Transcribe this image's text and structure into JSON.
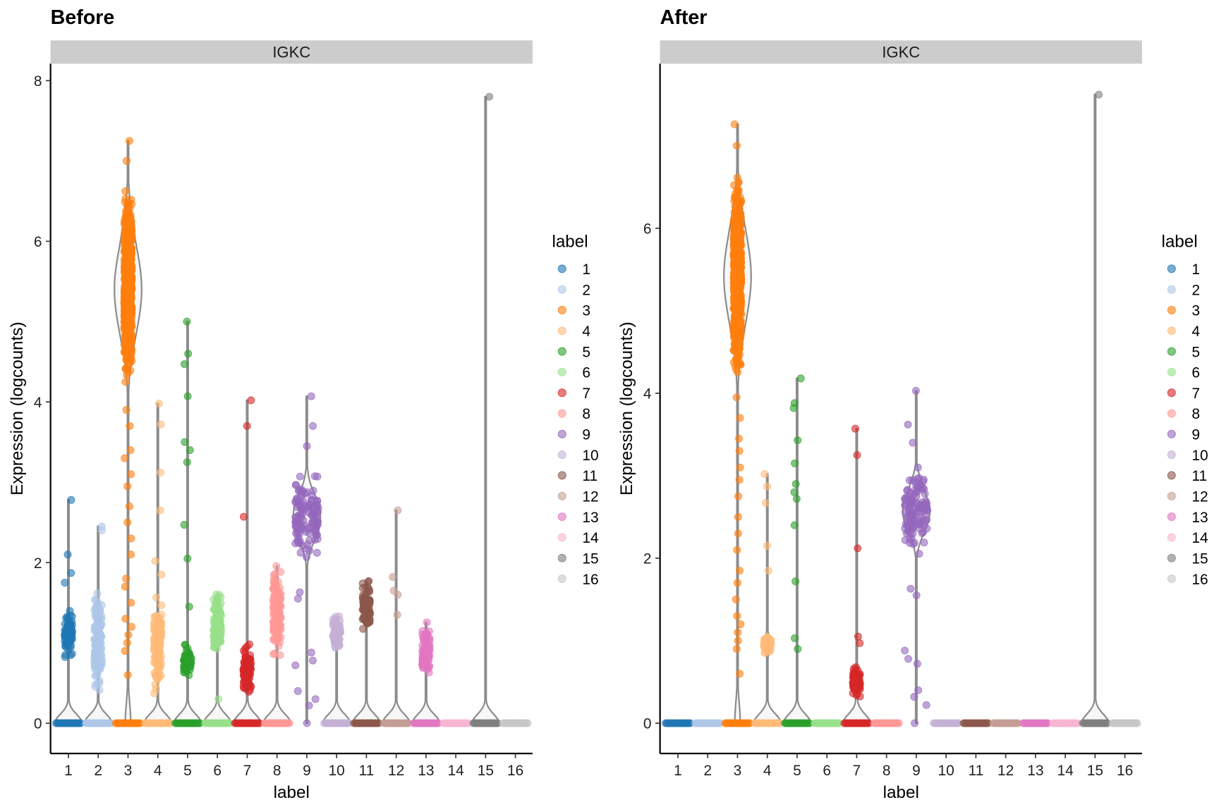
{
  "chart_data": [
    {
      "type": "violin",
      "title": "Before",
      "facet": "IGKC",
      "xlabel": "label",
      "ylabel": "Expression (logcounts)",
      "ylim": [
        -0.38,
        8.2
      ],
      "yticks": [
        0,
        2,
        4,
        6,
        8
      ],
      "categories": [
        "1",
        "2",
        "3",
        "4",
        "5",
        "6",
        "7",
        "8",
        "9",
        "10",
        "11",
        "12",
        "13",
        "14",
        "15",
        "16"
      ],
      "groups": [
        {
          "label": "1",
          "zeros": true,
          "dense": [
            0.7,
            1.5
          ],
          "points": [
            1.75,
            1.87,
            2.1,
            2.78
          ]
        },
        {
          "label": "2",
          "zeros": true,
          "dense": [
            0.2,
            1.8
          ],
          "points": [
            2.4,
            2.45
          ]
        },
        {
          "label": "3",
          "zeros": true,
          "dense": [
            4.0,
            6.8
          ],
          "points": [
            0.6,
            0.9,
            1.0,
            1.1,
            1.2,
            1.3,
            1.5,
            1.7,
            1.8,
            2.1,
            2.3,
            2.5,
            2.7,
            2.95,
            3.1,
            3.3,
            3.4,
            3.7,
            3.9,
            7.0,
            7.25
          ]
        },
        {
          "label": "4",
          "zeros": true,
          "dense": [
            0.3,
            1.7
          ],
          "points": [
            1.85,
            2.02,
            2.65,
            3.12,
            3.72,
            3.98
          ]
        },
        {
          "label": "5",
          "zeros": true,
          "dense": [
            0.55,
            1.0
          ],
          "points": [
            1.45,
            2.05,
            2.47,
            3.25,
            3.4,
            3.5,
            4.07,
            4.47,
            4.6,
            5.0
          ]
        },
        {
          "label": "6",
          "zeros": true,
          "dense": [
            0.7,
            1.75
          ],
          "points": [
            0.3
          ]
        },
        {
          "label": "7",
          "zeros": true,
          "dense": [
            0.25,
            1.05
          ],
          "points": [
            2.57,
            3.7,
            4.02
          ]
        },
        {
          "label": "8",
          "zeros": true,
          "dense": [
            0.68,
            2.1
          ],
          "points": []
        },
        {
          "label": "9",
          "zeros": false,
          "dense": [
            1.9,
            3.2
          ],
          "points": [
            0,
            0.22,
            0.3,
            0.4,
            0.72,
            0.78,
            0.88,
            1.55,
            1.63,
            3.45,
            3.7,
            4.07
          ]
        },
        {
          "label": "10",
          "zeros": true,
          "dense": [
            0.85,
            1.42
          ],
          "points": []
        },
        {
          "label": "11",
          "zeros": true,
          "dense": [
            1.1,
            1.85
          ],
          "points": []
        },
        {
          "label": "12",
          "zeros": true,
          "dense": null,
          "points": [
            1.35,
            1.6,
            1.65,
            1.82,
            2.65
          ]
        },
        {
          "label": "13",
          "zeros": true,
          "dense": [
            0.5,
            1.32
          ],
          "points": []
        },
        {
          "label": "14",
          "zeros": true,
          "dense": null,
          "points": []
        },
        {
          "label": "15",
          "zeros": true,
          "dense": null,
          "points": [
            7.8
          ]
        },
        {
          "label": "16",
          "zeros": true,
          "dense": null,
          "points": []
        }
      ],
      "legend": {
        "title": "label",
        "position": "right"
      }
    },
    {
      "type": "violin",
      "title": "After",
      "facet": "IGKC",
      "xlabel": "label",
      "ylabel": "Expression (logcounts)",
      "ylim": [
        -0.37,
        8.0
      ],
      "yticks": [
        0,
        2,
        4,
        6
      ],
      "categories": [
        "1",
        "2",
        "3",
        "4",
        "5",
        "6",
        "7",
        "8",
        "9",
        "10",
        "11",
        "12",
        "13",
        "14",
        "15",
        "16"
      ],
      "groups": [
        {
          "label": "1",
          "zeros": true,
          "dense": null,
          "points": []
        },
        {
          "label": "2",
          "zeros": true,
          "dense": null,
          "points": []
        },
        {
          "label": "3",
          "zeros": true,
          "dense": [
            4.0,
            6.8
          ],
          "points": [
            0.6,
            0.9,
            1.0,
            1.1,
            1.2,
            1.3,
            1.5,
            1.7,
            1.85,
            2.1,
            2.3,
            2.5,
            2.75,
            2.95,
            3.1,
            3.3,
            3.45,
            3.7,
            3.95,
            7.0,
            7.26
          ]
        },
        {
          "label": "4",
          "zeros": true,
          "dense": [
            0.8,
            1.1
          ],
          "points": [
            1.85,
            2.15,
            2.67,
            2.87,
            3.02
          ]
        },
        {
          "label": "5",
          "zeros": true,
          "dense": null,
          "points": [
            0.9,
            1.03,
            1.72,
            2.4,
            2.72,
            2.8,
            2.9,
            3.15,
            3.43,
            3.82,
            3.88,
            4.18
          ]
        },
        {
          "label": "6",
          "zeros": true,
          "dense": null,
          "points": []
        },
        {
          "label": "7",
          "zeros": true,
          "dense": [
            0.28,
            0.75
          ],
          "points": [
            0.97,
            1.05,
            2.12,
            3.25,
            3.57
          ]
        },
        {
          "label": "8",
          "zeros": true,
          "dense": null,
          "points": []
        },
        {
          "label": "9",
          "zeros": false,
          "dense": [
            1.9,
            3.2
          ],
          "points": [
            0,
            0.22,
            0.32,
            0.4,
            0.72,
            0.78,
            0.88,
            1.55,
            1.63,
            3.4,
            3.62,
            4.03
          ]
        },
        {
          "label": "10",
          "zeros": true,
          "dense": null,
          "points": []
        },
        {
          "label": "11",
          "zeros": true,
          "dense": null,
          "points": []
        },
        {
          "label": "12",
          "zeros": true,
          "dense": null,
          "points": []
        },
        {
          "label": "13",
          "zeros": true,
          "dense": null,
          "points": []
        },
        {
          "label": "14",
          "zeros": true,
          "dense": null,
          "points": []
        },
        {
          "label": "15",
          "zeros": true,
          "dense": null,
          "points": [
            7.62
          ]
        },
        {
          "label": "16",
          "zeros": true,
          "dense": null,
          "points": []
        }
      ],
      "legend": {
        "title": "label",
        "position": "right"
      }
    }
  ],
  "colors": [
    "#1f77b4",
    "#aec7e8",
    "#ff7f0e",
    "#ffbb78",
    "#2ca02c",
    "#98df8a",
    "#d62728",
    "#ff9896",
    "#9467bd",
    "#c5b0d5",
    "#8c564b",
    "#c49c94",
    "#e377c2",
    "#f7b6d2",
    "#7f7f7f",
    "#c7c7c7"
  ],
  "violin_color": "#8c8c8c",
  "strip_fill": "#cccccc"
}
